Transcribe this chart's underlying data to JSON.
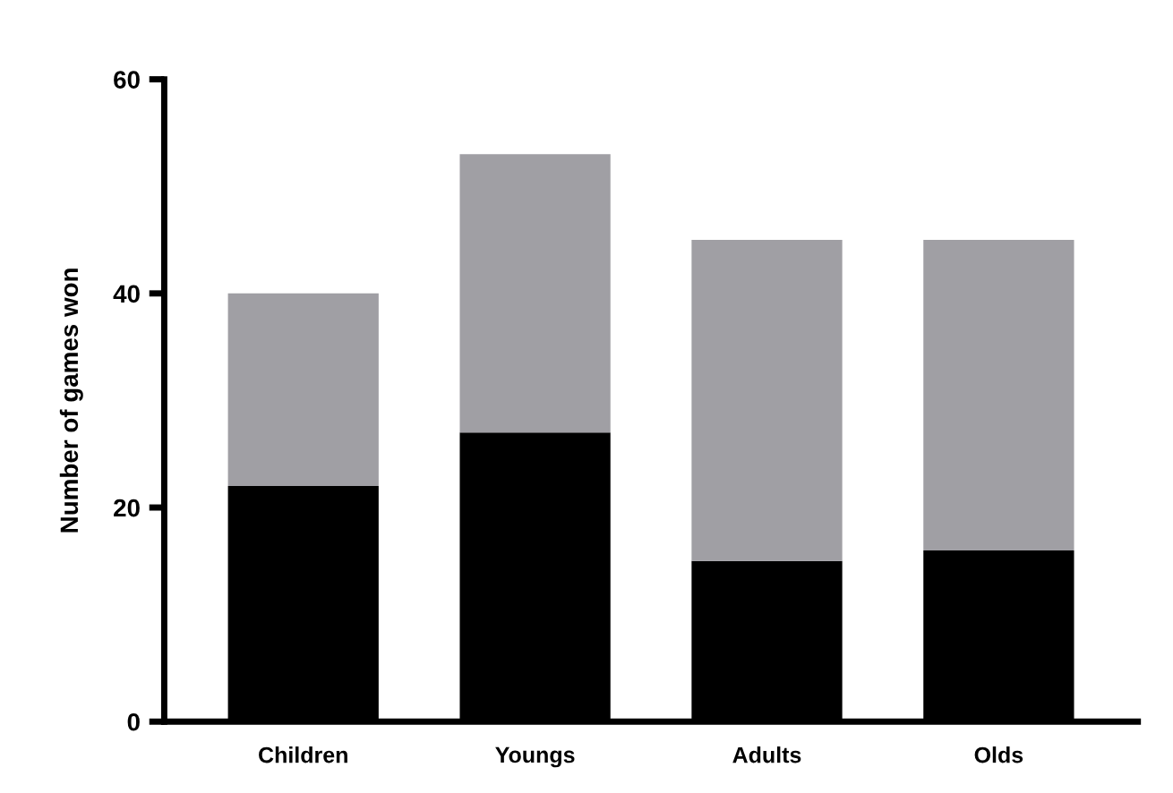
{
  "chart_data": {
    "type": "bar",
    "stacked": true,
    "ylabel": "Number of games won",
    "categories": [
      "Children",
      "Youngs",
      "Adults",
      "Olds"
    ],
    "series": [
      {
        "color": "#000000",
        "values": [
          22,
          27,
          15,
          16
        ]
      },
      {
        "color": "#a09fa4",
        "values": [
          18,
          26,
          30,
          29
        ]
      }
    ],
    "ylim": [
      0,
      60
    ],
    "yticks": [
      0,
      20,
      40,
      60
    ],
    "grid": false
  }
}
